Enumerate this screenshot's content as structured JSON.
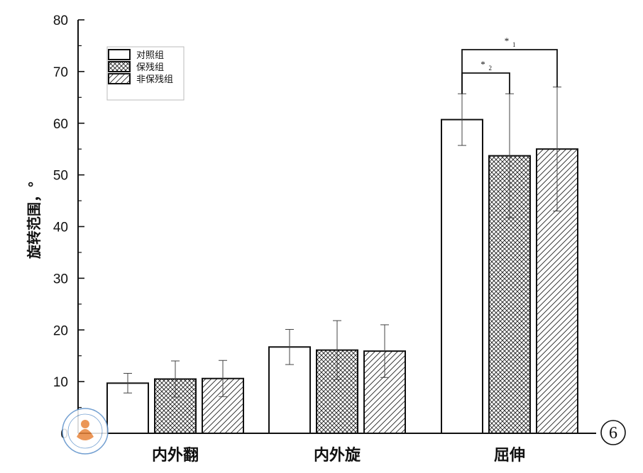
{
  "chart_data": {
    "type": "bar",
    "ylabel": "旋转范围，°",
    "xlabel": "",
    "ylim": [
      0,
      80
    ],
    "yticks": [
      "0",
      "10",
      "20",
      "30",
      "40",
      "50",
      "60",
      "70",
      "80"
    ],
    "categories": [
      "内外翻",
      "内外旋",
      "屈伸"
    ],
    "series": [
      {
        "name": "对照组",
        "pattern": "plain",
        "values": [
          9.7,
          16.7,
          60.7
        ],
        "errors": [
          1.9,
          3.4,
          5.0
        ]
      },
      {
        "name": "保残组",
        "pattern": "crosshatch",
        "values": [
          10.5,
          16.1,
          53.7
        ],
        "errors": [
          3.5,
          5.7,
          12.0
        ]
      },
      {
        "name": "非保残组",
        "pattern": "diagonal",
        "values": [
          10.6,
          15.9,
          55.0
        ],
        "errors": [
          3.5,
          5.1,
          12.0
        ]
      }
    ],
    "legend_position": "top-left",
    "significance": [
      {
        "label": "*",
        "subscript": "1",
        "category": "屈伸",
        "from_series": 0,
        "to_series": 2
      },
      {
        "label": "*",
        "subscript": "2",
        "category": "屈伸",
        "from_series": 0,
        "to_series": 1
      }
    ],
    "panel_label": "6"
  }
}
